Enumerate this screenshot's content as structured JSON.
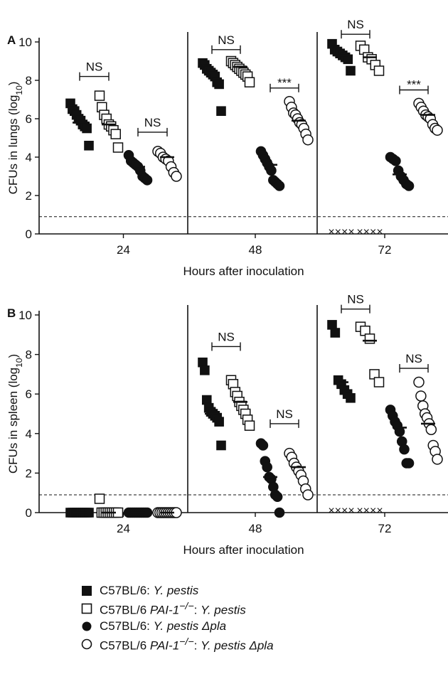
{
  "chart_data": [
    {
      "type": "scatter",
      "panel_label": "A",
      "ylabel": "CFUs in lungs (log",
      "ylabel_sub": "10",
      "ylabel_close": ")",
      "xlabel": "Hours after inoculation",
      "ylim": [
        0,
        10
      ],
      "yticks": [
        "0",
        "2",
        "4",
        "6",
        "8",
        "10"
      ],
      "detection_limit": 0.9,
      "groups": [
        {
          "label": "24",
          "series": [
            {
              "values": [
                6.8,
                6.5,
                6.4,
                6.2,
                6.0,
                5.9,
                5.7,
                5.6,
                5.5,
                4.6
              ],
              "median": 5.8
            },
            {
              "values": [
                7.2,
                6.6,
                6.2,
                6.0,
                5.7,
                5.6,
                5.4,
                5.2,
                4.5
              ],
              "median": 5.7
            },
            {
              "values": [
                4.1,
                3.8,
                3.7,
                3.6,
                3.5,
                3.3,
                3.0,
                2.9,
                2.8
              ],
              "median": 3.5
            },
            {
              "values": [
                4.3,
                4.2,
                4.0,
                3.9,
                3.8,
                3.5,
                3.2,
                3.0
              ],
              "median": 4.0
            }
          ],
          "significance": [
            {
              "label": "NS",
              "pair": [
                0,
                1
              ],
              "y": 8.2
            },
            {
              "label": "NS",
              "pair": [
                2,
                3
              ],
              "y": 5.3
            }
          ]
        },
        {
          "label": "48",
          "series": [
            {
              "values": [
                8.9,
                8.8,
                8.6,
                8.5,
                8.4,
                8.3,
                8.2,
                7.9,
                7.8,
                6.4
              ],
              "median": 8.4
            },
            {
              "values": [
                9.0,
                8.9,
                8.8,
                8.7,
                8.6,
                8.5,
                8.4,
                8.3,
                8.2,
                7.9
              ],
              "median": 8.7
            },
            {
              "values": [
                4.3,
                4.1,
                3.9,
                3.7,
                3.5,
                3.3,
                2.8,
                2.7,
                2.6,
                2.5
              ],
              "median": 3.6
            },
            {
              "values": [
                6.9,
                6.6,
                6.3,
                6.2,
                6.0,
                5.8,
                5.7,
                5.5,
                5.2,
                4.9
              ],
              "median": 5.9
            }
          ],
          "significance": [
            {
              "label": "NS",
              "pair": [
                0,
                1
              ],
              "y": 9.6
            },
            {
              "label": "***",
              "pair": [
                2,
                3
              ],
              "y": 7.6
            }
          ]
        },
        {
          "label": "72",
          "series": [
            {
              "values": [
                9.9,
                9.6,
                9.5,
                9.4,
                9.3,
                9.2,
                9.1,
                8.5
              ],
              "median": 9.3,
              "below_limit": 4
            },
            {
              "values": [
                9.8,
                9.6,
                9.2,
                9.1,
                8.8,
                8.5
              ],
              "median": 9.2,
              "below_limit": 4
            },
            {
              "values": [
                4.0,
                3.9,
                3.8,
                3.3,
                3.0,
                2.8,
                2.6,
                2.5
              ],
              "median": 3.1
            },
            {
              "values": [
                6.8,
                6.6,
                6.4,
                6.2,
                6.1,
                6.0,
                5.7,
                5.5,
                5.4
              ],
              "median": 6.2
            }
          ],
          "significance": [
            {
              "label": "NS",
              "pair": [
                0,
                1
              ],
              "y": 10.4
            },
            {
              "label": "***",
              "pair": [
                2,
                3
              ],
              "y": 7.5
            }
          ]
        }
      ]
    },
    {
      "type": "scatter",
      "panel_label": "B",
      "ylabel": "CFUs in spleen (log",
      "ylabel_sub": "10",
      "ylabel_close": ")",
      "xlabel": "Hours after inoculation",
      "ylim": [
        0,
        10
      ],
      "yticks": [
        "0",
        "2",
        "4",
        "6",
        "8",
        "10"
      ],
      "detection_limit": 0.9,
      "groups": [
        {
          "label": "24",
          "series": [
            {
              "values": [
                0,
                0,
                0,
                0,
                0,
                0,
                0,
                0,
                0,
                0
              ],
              "median": 0
            },
            {
              "values": [
                0.7,
                0,
                0,
                0,
                0,
                0,
                0,
                0,
                0,
                0
              ],
              "median": 0
            },
            {
              "values": [
                0,
                0,
                0,
                0,
                0,
                0,
                0,
                0,
                0,
                0
              ],
              "median": 0
            },
            {
              "values": [
                0,
                0,
                0,
                0,
                0,
                0,
                0,
                0,
                0,
                0
              ],
              "median": 0
            }
          ],
          "significance": []
        },
        {
          "label": "48",
          "series": [
            {
              "values": [
                7.6,
                7.2,
                5.7,
                5.3,
                5.1,
                5.0,
                4.9,
                4.8,
                4.6,
                3.4
              ],
              "median": 5.0
            },
            {
              "values": [
                6.7,
                6.5,
                6.1,
                5.9,
                5.6,
                5.4,
                5.2,
                5.0,
                4.7,
                4.4
              ],
              "median": 5.6
            },
            {
              "values": [
                3.5,
                3.4,
                2.6,
                2.3,
                1.8,
                1.7,
                1.3,
                0.9,
                0.8,
                0
              ],
              "median": 1.8
            },
            {
              "values": [
                3.0,
                2.8,
                2.5,
                2.3,
                2.1,
                1.9,
                1.6,
                1.2,
                0.9
              ],
              "median": 2.3
            }
          ],
          "significance": [
            {
              "label": "NS",
              "pair": [
                0,
                1
              ],
              "y": 8.4
            },
            {
              "label": "NS",
              "pair": [
                2,
                3
              ],
              "y": 4.5
            }
          ]
        },
        {
          "label": "72",
          "series": [
            {
              "values": [
                9.5,
                9.1,
                6.7,
                6.5,
                6.2,
                6.0,
                5.8
              ],
              "median": 6.6,
              "below_limit": 4
            },
            {
              "values": [
                9.4,
                9.2,
                8.8,
                7.0,
                6.6
              ],
              "median": 8.7,
              "below_limit": 4
            },
            {
              "values": [
                5.2,
                4.9,
                4.6,
                4.4,
                4.1,
                3.6,
                3.2,
                2.5,
                2.5
              ],
              "median": 4.3
            },
            {
              "values": [
                6.6,
                5.9,
                5.4,
                5.0,
                4.8,
                4.5,
                4.2,
                3.4,
                3.1,
                2.7
              ],
              "median": 4.5
            }
          ],
          "significance": [
            {
              "label": "NS",
              "pair": [
                0,
                1
              ],
              "y": 10.3
            },
            {
              "label": "NS",
              "pair": [
                2,
                3
              ],
              "y": 7.3
            }
          ]
        }
      ]
    }
  ],
  "legend": [
    {
      "marker": "filled-square",
      "prefix": "C57BL/6: ",
      "ko": "",
      "ko_sup": "",
      "sep": "",
      "species": "Y. pestis",
      "suffix": ""
    },
    {
      "marker": "open-square",
      "prefix": "C57BL/6 ",
      "ko": "PAI-1",
      "ko_sup": "−/−",
      "sep": ": ",
      "species": "Y. pestis",
      "suffix": ""
    },
    {
      "marker": "filled-circle",
      "prefix": "C57BL/6: ",
      "ko": "",
      "ko_sup": "",
      "sep": "",
      "species": "Y. pestis",
      "suffix": " Δpla"
    },
    {
      "marker": "open-circle",
      "prefix": "C57BL/6 ",
      "ko": "PAI-1",
      "ko_sup": "−/−",
      "sep": ": ",
      "species": "Y. pestis",
      "suffix": " Δpla"
    }
  ],
  "colors": {
    "ink": "#111111",
    "fill": "#111111",
    "open_fill": "#ffffff"
  }
}
